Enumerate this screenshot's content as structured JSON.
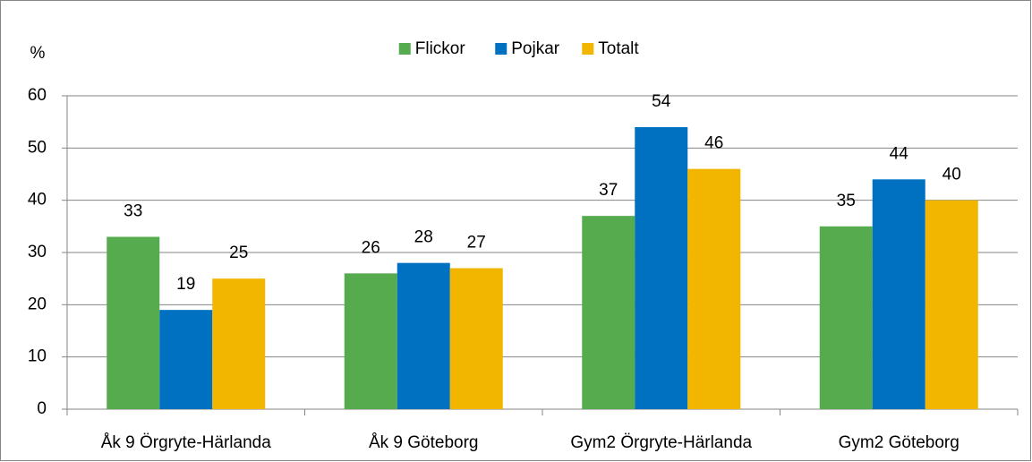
{
  "chart_data": {
    "type": "bar",
    "ylabel": "%",
    "categories": [
      "Åk 9 Örgryte-Härlanda",
      "Åk 9 Göteborg",
      "Gym2 Örgryte-Härlanda",
      "Gym2 Göteborg"
    ],
    "series": [
      {
        "name": "Flickor",
        "color": "#56ab4f",
        "values": [
          33,
          26,
          37,
          35
        ]
      },
      {
        "name": "Pojkar",
        "color": "#0070c0",
        "values": [
          19,
          28,
          54,
          44
        ]
      },
      {
        "name": "Totalt",
        "color": "#f2b600",
        "values": [
          25,
          27,
          46,
          40
        ]
      }
    ],
    "ylim": [
      0,
      60
    ],
    "yticks": [
      0,
      10,
      20,
      30,
      40,
      50,
      60
    ],
    "grid": true,
    "legend": "top"
  }
}
